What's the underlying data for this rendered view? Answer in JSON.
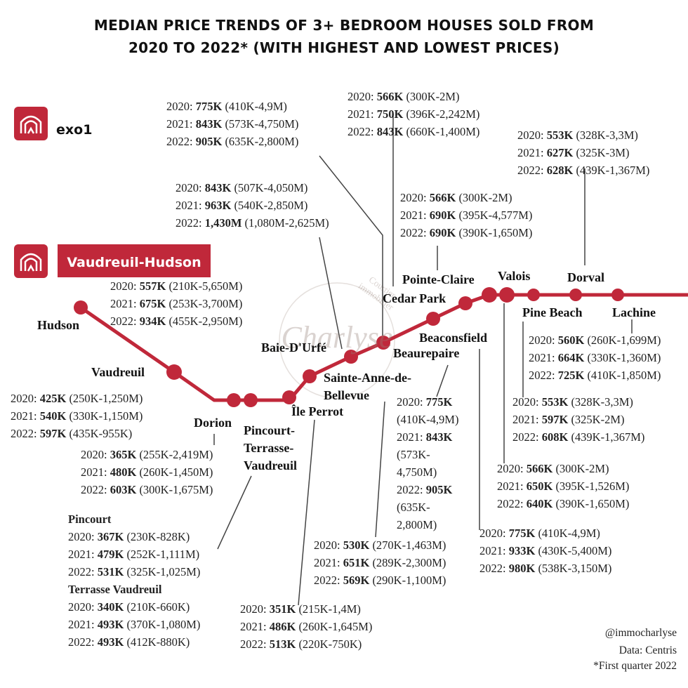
{
  "title": [
    "MEDIAN PRICE TRENDS OF 3+ BEDROOM HOUSES SOLD FROM",
    "2020 TO 2022* (WITH HIGHEST AND LOWEST PRICES)"
  ],
  "legend": {
    "network": "exo1",
    "line": "Vaudreuil-Hudson"
  },
  "watermark": [
    "Courtier immobilier",
    "Charlyse"
  ],
  "stations": [
    "Hudson",
    "Vaudreuil",
    "Dorion",
    "Pincourt-Terrasse-Vaudreuil",
    "Île Perrot",
    "Sainte-Anne-de-Bellevue",
    "Baie-D'Urfé",
    "Beaurepaire",
    "Beaconsfield",
    "Cedar Park",
    "Pointe-Claire",
    "Valois",
    "Pine Beach",
    "Dorval",
    "Lachine"
  ],
  "price_blocks": [
    {
      "lines": [
        [
          "2020:",
          "557K",
          "(210K-5,650M)"
        ],
        [
          "2021:",
          "675K",
          "(253K-3,700M)"
        ],
        [
          "2022:",
          "934K",
          "(455K-2,950M)"
        ]
      ]
    },
    {
      "lines": [
        [
          "2020:",
          "425K",
          "(250K-1,250M)"
        ],
        [
          "2021:",
          "540K",
          "(330K-1,150M)"
        ],
        [
          "2022:",
          "597K",
          "(435K-955K)"
        ]
      ]
    },
    {
      "lines": [
        [
          "2020:",
          "365K",
          "(255K-2,419M)"
        ],
        [
          "2021:",
          "480K",
          "(260K-1,450M)"
        ],
        [
          "2022:",
          "603K",
          "(300K-1,675M)"
        ]
      ]
    },
    {
      "heading": "Pincourt",
      "lines": [
        [
          "2020:",
          "367K",
          "(230K-828K)"
        ],
        [
          "2021:",
          "479K",
          "(252K-1,111M)"
        ],
        [
          "2022:",
          "531K",
          "(325K-1,025M)"
        ]
      ]
    },
    {
      "heading": "Terrasse Vaudreuil",
      "lines": [
        [
          "2020:",
          "340K",
          "(210K-660K)"
        ],
        [
          "2021:",
          "493K",
          "(370K-1,080M)"
        ],
        [
          "2022:",
          "493K",
          "(412K-880K)"
        ]
      ]
    },
    {
      "lines": [
        [
          "2020:",
          "351K",
          "(215K-1,4M)"
        ],
        [
          "2021:",
          "486K",
          "(260K-1,645M)"
        ],
        [
          "2022:",
          "513K",
          "(220K-750K)"
        ]
      ]
    },
    {
      "lines": [
        [
          "2020:",
          "530K",
          "(270K-1,463M)"
        ],
        [
          "2021:",
          "651K",
          "(289K-2,300M)"
        ],
        [
          "2022:",
          "569K",
          "(290K-1,100M)"
        ]
      ]
    },
    {
      "lines": [
        [
          "2020:",
          "843K",
          "(507K-4,050M)"
        ],
        [
          "2021:",
          "963K",
          "(540K-2,850M)"
        ],
        [
          "2022:",
          "1,430M",
          "(1,080M-2,625M)"
        ]
      ]
    },
    {
      "lines": [
        [
          "2020:",
          "775K",
          "(410K-4,9M)"
        ],
        [
          "2021:",
          "843K",
          "(573K-4,750M)"
        ],
        [
          "2022:",
          "905K",
          "(635K-2,800M)"
        ]
      ]
    },
    {
      "lines": [
        [
          "2020:",
          "566K",
          "(300K-2M)"
        ],
        [
          "2021:",
          "750K",
          "(396K-2,242M)"
        ],
        [
          "2022:",
          "843K",
          "(660K-1,400M)"
        ]
      ]
    },
    {
      "lines": [
        [
          "2020:",
          "566K",
          "(300K-2M)"
        ],
        [
          "2021:",
          "690K",
          "(395K-4,577M)"
        ],
        [
          "2022:",
          "690K",
          "(390K-1,650M)"
        ]
      ]
    },
    {
      "lines": [
        [
          "2020:",
          "553K",
          "(328K-3,3M)"
        ],
        [
          "2021:",
          "627K",
          "(325K-3M)"
        ],
        [
          "2022:",
          "628K",
          "(439K-1,367M)"
        ]
      ]
    },
    {
      "lines": [
        [
          "2020:",
          "560K",
          "(260K-1,699M)"
        ],
        [
          "2021:",
          "664K",
          "(330K-1,360M)"
        ],
        [
          "2022:",
          "725K",
          "(410K-1,850M)"
        ]
      ]
    },
    {
      "lines": [
        [
          "2020:",
          "553K",
          "(328K-3,3M)"
        ],
        [
          "2021:",
          "597K",
          "(325K-2M)"
        ],
        [
          "2022:",
          "608K",
          "(439K-1,367M)"
        ]
      ]
    },
    {
      "lines": [
        [
          "2020:",
          "566K",
          "(300K-2M)"
        ],
        [
          "2021:",
          "650K",
          "(395K-1,526M)"
        ],
        [
          "2022:",
          "640K",
          "(390K-1,650M)"
        ]
      ]
    },
    {
      "lines": [
        [
          "2020:",
          "775K",
          "(410K-4,9M)"
        ],
        [
          "2021:",
          "933K",
          "(430K-5,400M)"
        ],
        [
          "2022:",
          "980K",
          "(538K-3,150M)"
        ]
      ]
    },
    {
      "lines": [
        [
          "2020:",
          "775K",
          "(410K-4,9M)"
        ],
        [
          "2021:",
          "843K",
          "(573K-4,750M)"
        ],
        [
          "2022:",
          "905K",
          "(635K-2,800M)"
        ]
      ]
    }
  ],
  "footer": [
    "@immocharlyse",
    "Data: Centris",
    "*First quarter 2022"
  ]
}
